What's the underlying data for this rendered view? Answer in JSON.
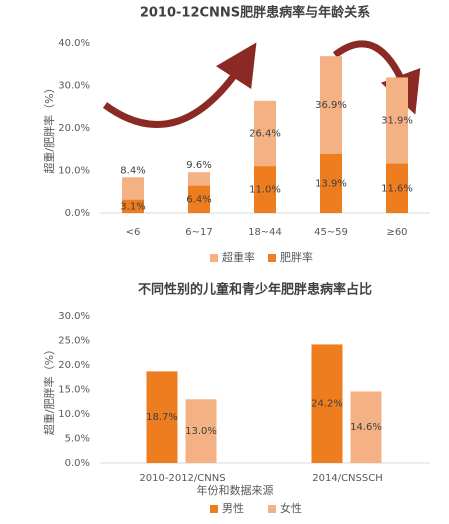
{
  "chart_data": [
    {
      "type": "bar",
      "bar_mode": "overlap",
      "title": "2010-12CNNS肥胖患病率与年龄关系",
      "y_label": "超重/肥胖率（%）",
      "categories": [
        "<6",
        "6~17",
        "18~44",
        "45~59",
        "≥60"
      ],
      "series": [
        {
          "name": "超重率",
          "color": "#f4b183",
          "values": [
            8.4,
            9.6,
            26.4,
            36.9,
            31.9
          ],
          "value_labels": [
            "8.4%",
            "9.6%",
            "26.4%",
            "36.9%",
            "31.9%"
          ]
        },
        {
          "name": "肥胖率",
          "color": "#ee7d1f",
          "values": [
            3.1,
            6.4,
            11.0,
            13.9,
            11.6
          ],
          "value_labels": [
            "3.1%",
            "6.4%",
            "11.0%",
            "13.9%",
            "11.6%"
          ]
        }
      ],
      "ylim": [
        0,
        40
      ],
      "yticks": [
        {
          "value": 0,
          "label": "0.0%"
        },
        {
          "value": 10,
          "label": "10.0%"
        },
        {
          "value": 20,
          "label": "20.0%"
        },
        {
          "value": 30,
          "label": "30.0%"
        },
        {
          "value": 40,
          "label": "40.0%"
        }
      ],
      "grid": false,
      "legend": "bottom"
    },
    {
      "type": "bar",
      "bar_mode": "group",
      "title": "不同性别的儿童和青少年肥胖患病率占比",
      "y_label": "超重/肥胖率（%）",
      "x_label": "年份和数据来源",
      "categories": [
        "2010-2012/CNNS",
        "2014/CNSSCH"
      ],
      "series": [
        {
          "name": "男性",
          "color": "#ee7d1f",
          "values": [
            18.7,
            24.2
          ],
          "value_labels": [
            "18.7%",
            "24.2%"
          ]
        },
        {
          "name": "女性",
          "color": "#f4b183",
          "values": [
            13.0,
            14.6
          ],
          "value_labels": [
            "13.0%",
            "14.6%"
          ]
        }
      ],
      "ylim": [
        0,
        30
      ],
      "yticks": [
        {
          "value": 0,
          "label": "0.0%"
        },
        {
          "value": 5,
          "label": "5.0%"
        },
        {
          "value": 10,
          "label": "10.0%"
        },
        {
          "value": 15,
          "label": "15.0%"
        },
        {
          "value": 20,
          "label": "20.0%"
        },
        {
          "value": 25,
          "label": "25.0%"
        },
        {
          "value": 30,
          "label": "30.0%"
        }
      ],
      "grid": false,
      "legend": "bottom"
    }
  ]
}
